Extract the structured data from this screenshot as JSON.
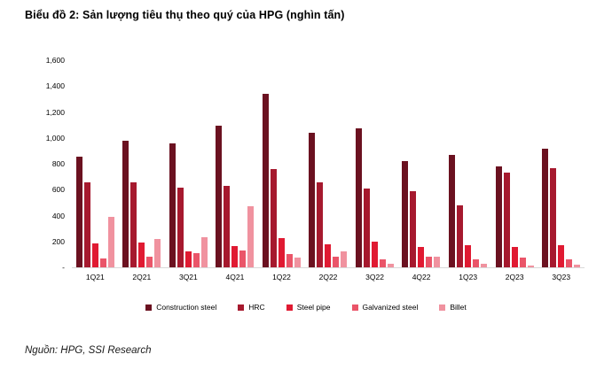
{
  "header": {
    "title": "Biểu đồ 2: Sản lượng tiêu thụ theo quý của HPG (nghìn tấn)"
  },
  "footer": {
    "source": "Nguồn: HPG, SSI Research"
  },
  "colors": {
    "axis_line": "#d9d9d9",
    "construction_steel": "#6B1120",
    "hrc": "#A6192E",
    "steel_pipe": "#E01A32",
    "galvanized_steel": "#EA5569",
    "billet": "#F0929F"
  },
  "chart_data": {
    "type": "bar",
    "title": "Biểu đồ 2: Sản lượng tiêu thụ theo quý của HPG (nghìn tấn)",
    "unit": "nghìn tấn",
    "categories": [
      "1Q21",
      "2Q21",
      "3Q21",
      "4Q21",
      "1Q22",
      "2Q22",
      "3Q22",
      "4Q22",
      "1Q23",
      "2Q23",
      "3Q23"
    ],
    "series": [
      {
        "name": "Construction steel",
        "color": "#6B1120",
        "values": [
          855,
          980,
          955,
          1095,
          1340,
          1040,
          1075,
          820,
          870,
          780,
          920
        ]
      },
      {
        "name": "HRC",
        "color": "#A6192E",
        "values": [
          660,
          660,
          615,
          630,
          760,
          655,
          610,
          590,
          480,
          735,
          765
        ]
      },
      {
        "name": "Steel pipe",
        "color": "#E01A32",
        "values": [
          185,
          195,
          120,
          165,
          225,
          175,
          200,
          160,
          170,
          160,
          170
        ]
      },
      {
        "name": "Galvanized steel",
        "color": "#EA5569",
        "values": [
          70,
          80,
          110,
          130,
          105,
          80,
          60,
          85,
          65,
          75,
          60
        ]
      },
      {
        "name": "Billet",
        "color": "#F0929F",
        "values": [
          390,
          220,
          230,
          470,
          75,
          120,
          25,
          85,
          25,
          15,
          20
        ]
      }
    ],
    "xlabel": "",
    "ylabel": "",
    "ylim": [
      0,
      1600
    ],
    "y_ticks": [
      {
        "label": "1,600",
        "value": 1600
      },
      {
        "label": "1,400",
        "value": 1400
      },
      {
        "label": "1,200",
        "value": 1200
      },
      {
        "label": "1,000",
        "value": 1000
      },
      {
        "label": "800",
        "value": 800
      },
      {
        "label": "600",
        "value": 600
      },
      {
        "label": "400",
        "value": 400
      },
      {
        "label": "200",
        "value": 200
      },
      {
        "label": "-",
        "value": 0
      }
    ],
    "grid": false,
    "legend_position": "bottom"
  }
}
